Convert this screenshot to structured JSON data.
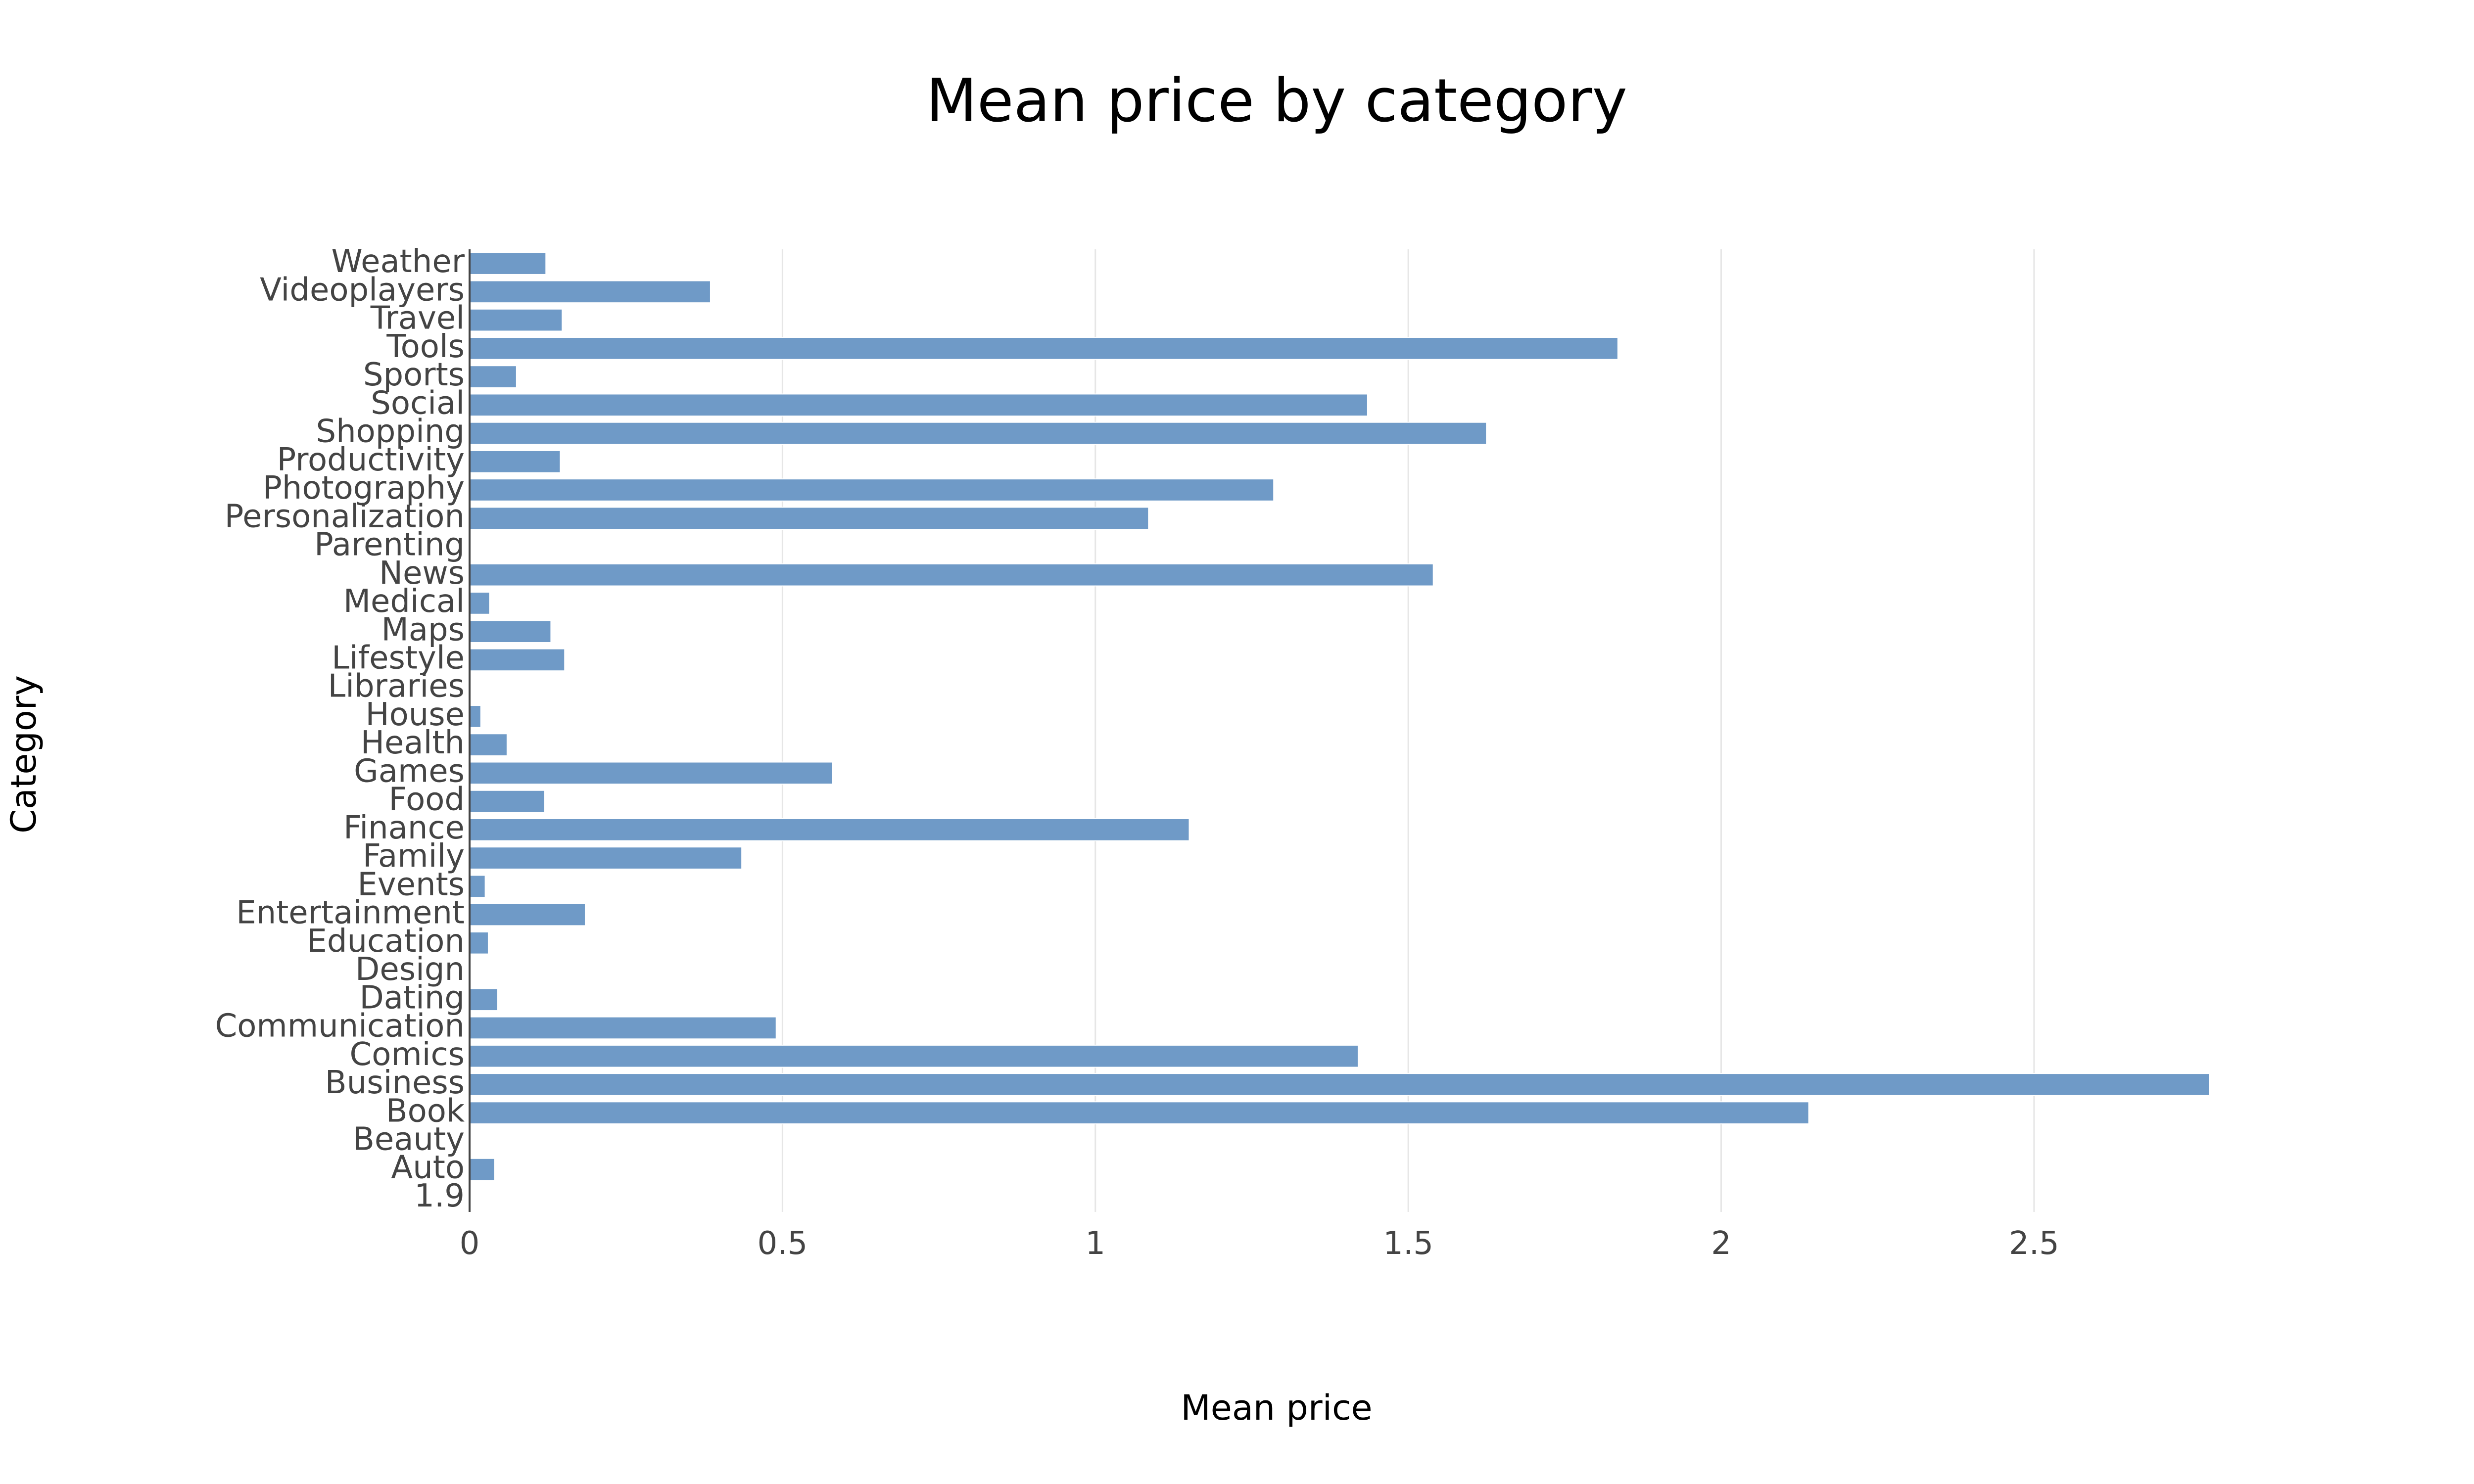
{
  "chart_data": {
    "type": "bar",
    "orientation": "horizontal",
    "title": "Mean price by category",
    "xlabel": "Mean price",
    "ylabel": "Category",
    "xlim": [
      0,
      2.95
    ],
    "x_ticks": [
      0,
      0.5,
      1,
      1.5,
      2,
      2.5
    ],
    "x_tick_labels": [
      "0",
      "0.5",
      "1",
      "1.5",
      "2",
      "2.5"
    ],
    "grid": "vertical",
    "legend": "none",
    "bar_color": "#6f9ac7",
    "categories": [
      "1.9",
      "Auto",
      "Beauty",
      "Book",
      "Business",
      "Comics",
      "Communication",
      "Dating",
      "Design",
      "Education",
      "Entertainment",
      "Events",
      "Family",
      "Finance",
      "Food",
      "Games",
      "Health",
      "House",
      "Libraries",
      "Lifestyle",
      "Maps",
      "Medical",
      "News",
      "Parenting",
      "Personalization",
      "Photography",
      "Productivity",
      "Shopping",
      "Social",
      "Sports",
      "Tools",
      "Travel",
      "Videoplayers",
      "Weather"
    ],
    "values": [
      0,
      0.04,
      0,
      2.14,
      2.78,
      1.42,
      0.49,
      0.045,
      0,
      0.03,
      0.185,
      0.025,
      0.435,
      1.15,
      0.12,
      0.58,
      0.06,
      0.018,
      0,
      0.152,
      0.13,
      0.032,
      1.54,
      0,
      1.085,
      1.285,
      0.145,
      1.625,
      1.435,
      0.075,
      1.835,
      0.148,
      0.385,
      0.122
    ]
  }
}
